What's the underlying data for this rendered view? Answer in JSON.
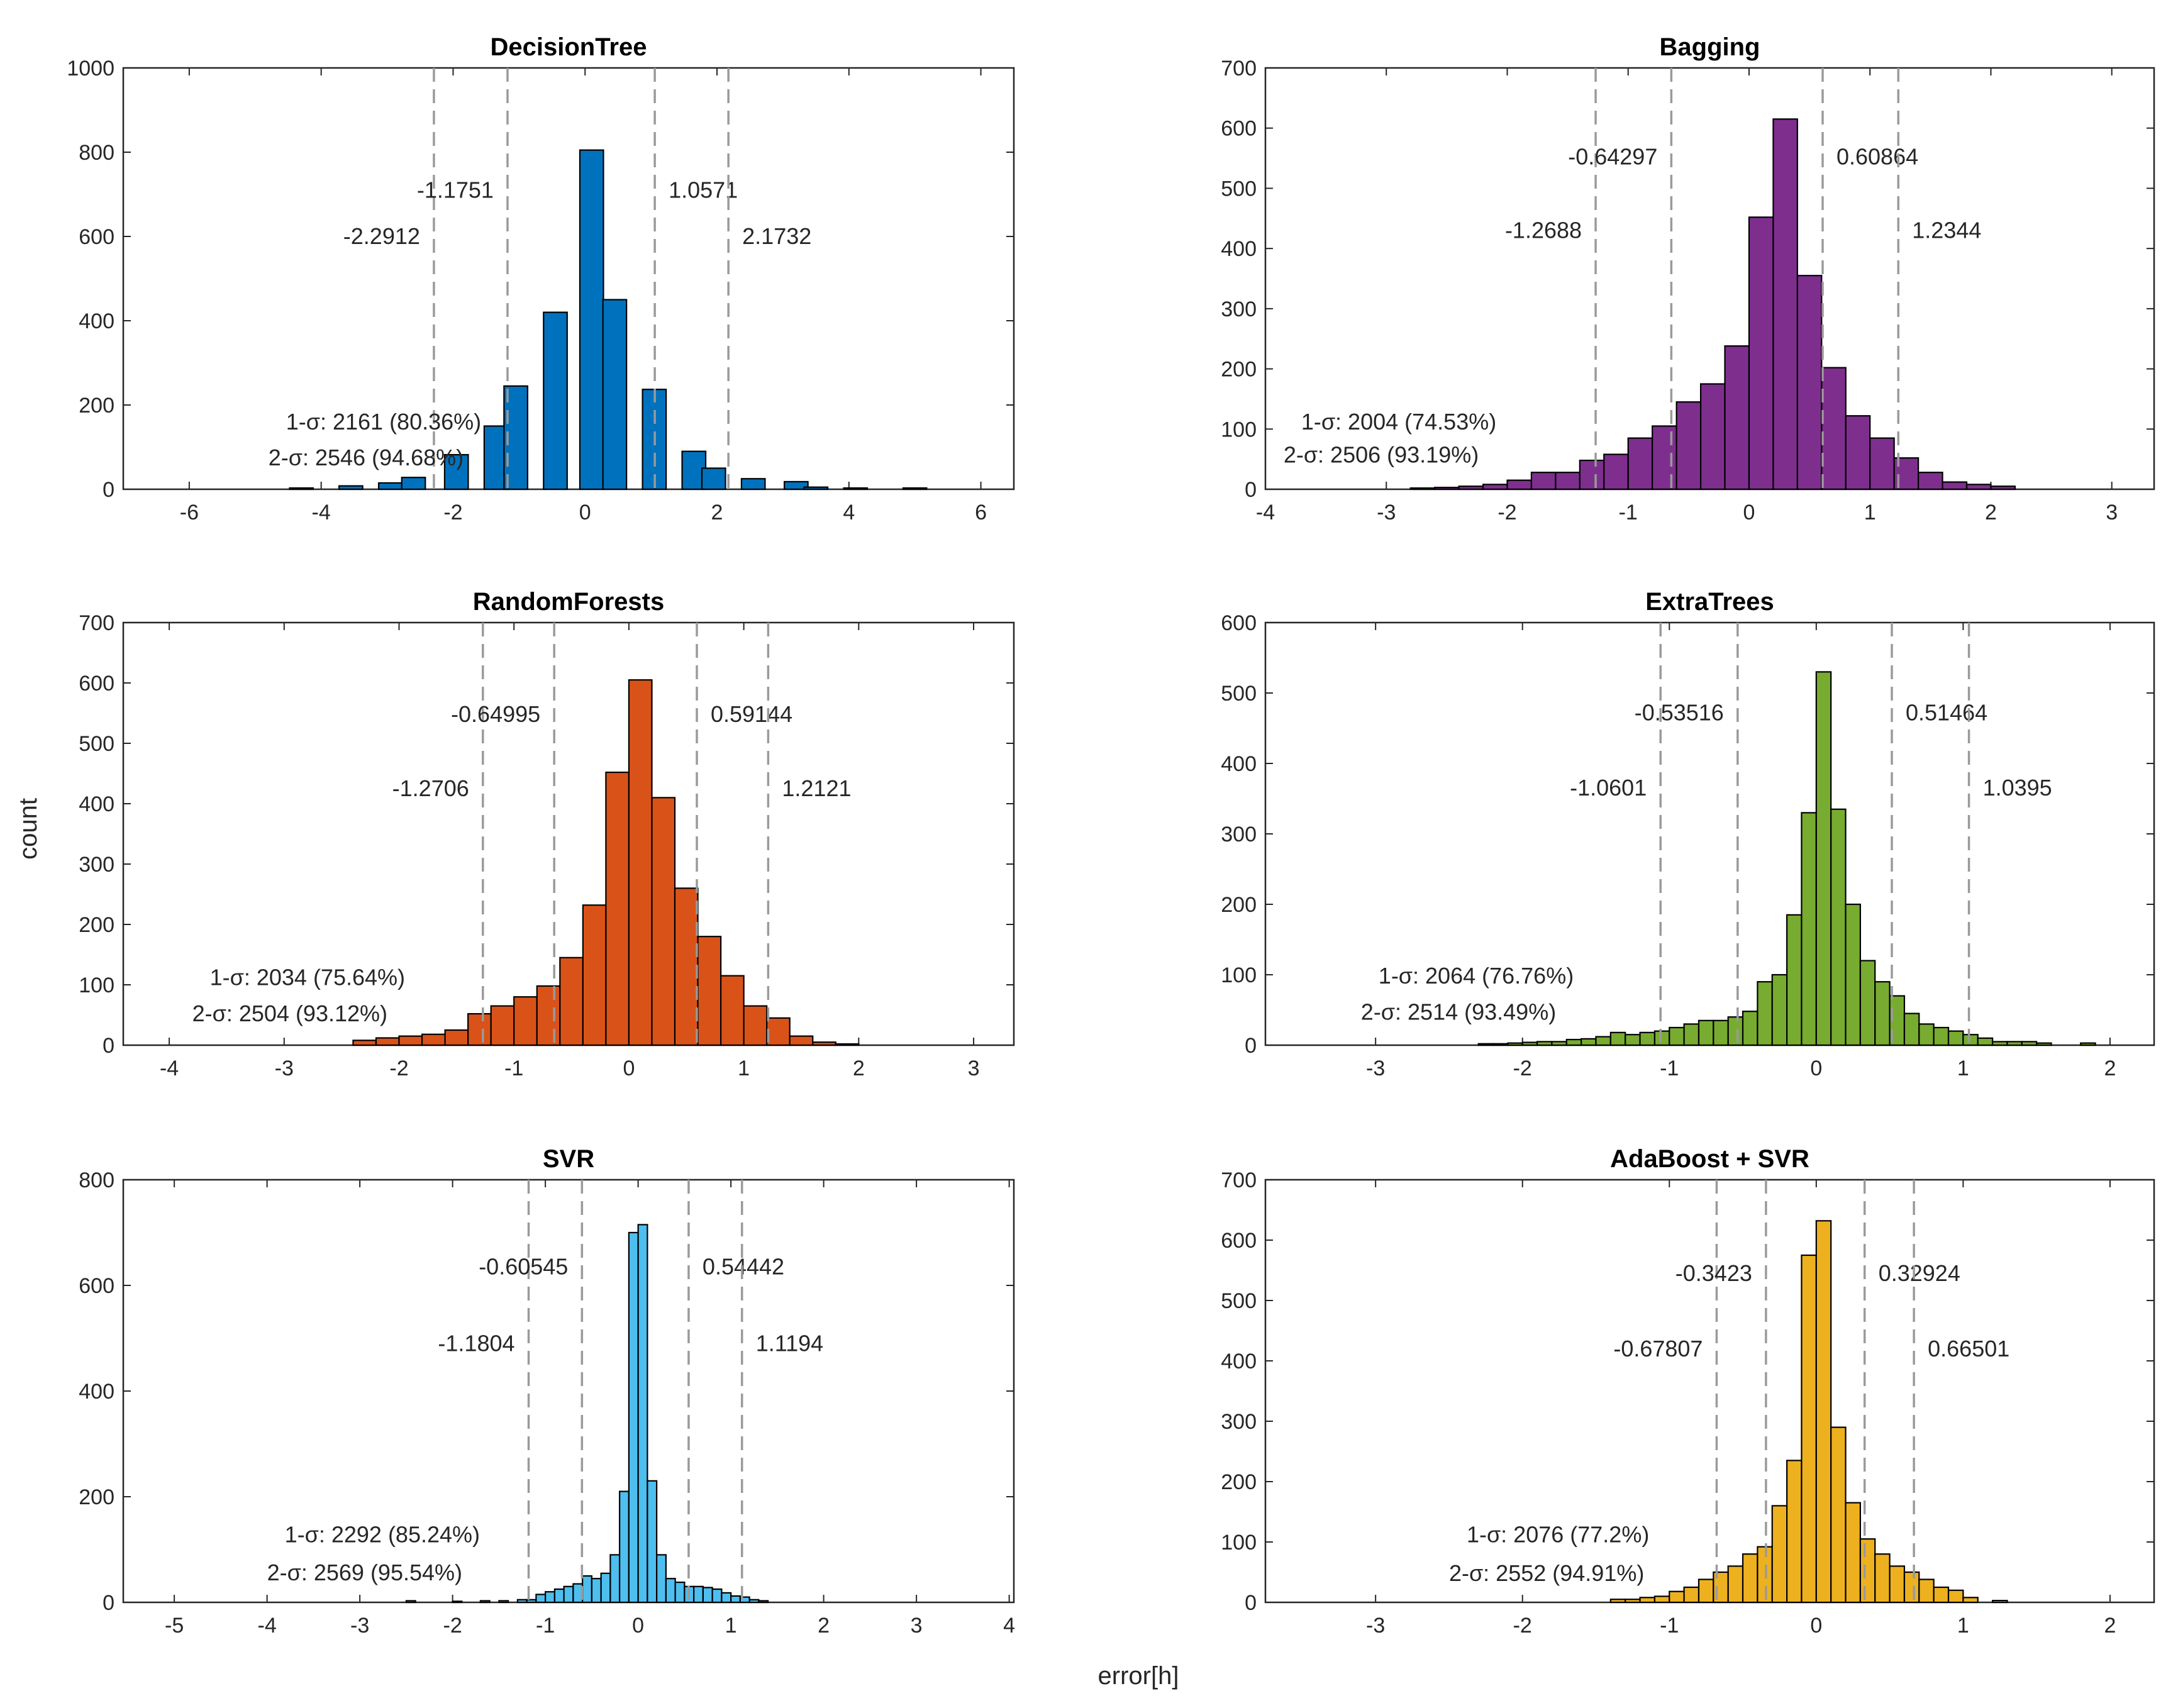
{
  "figure": {
    "ylabel": "count",
    "xlabel": "error[h]"
  },
  "chart_data": [
    {
      "type": "bar",
      "title": "DecisionTree",
      "color": "#0072BD",
      "xlim": [
        -7,
        6.5
      ],
      "ylim": [
        0,
        1000
      ],
      "xticks": [
        -6,
        -4,
        -2,
        0,
        2,
        4,
        6
      ],
      "yticks": [
        0,
        200,
        400,
        600,
        800,
        1000
      ],
      "bin_width": 0.55,
      "bar_width_fraction": 0.65,
      "bins": [
        {
          "x": -4.3,
          "y": 3
        },
        {
          "x": -3.55,
          "y": 8
        },
        {
          "x": -2.95,
          "y": 15
        },
        {
          "x": -2.6,
          "y": 28
        },
        {
          "x": -1.95,
          "y": 82
        },
        {
          "x": -1.35,
          "y": 150
        },
        {
          "x": -1.05,
          "y": 245
        },
        {
          "x": -0.45,
          "y": 420
        },
        {
          "x": 0.1,
          "y": 805
        },
        {
          "x": 0.45,
          "y": 450
        },
        {
          "x": 1.05,
          "y": 237
        },
        {
          "x": 1.65,
          "y": 90
        },
        {
          "x": 1.95,
          "y": 50
        },
        {
          "x": 2.55,
          "y": 25
        },
        {
          "x": 3.2,
          "y": 18
        },
        {
          "x": 3.5,
          "y": 5
        },
        {
          "x": 4.1,
          "y": 3
        },
        {
          "x": 5.0,
          "y": 3
        }
      ],
      "sigma_lines": [
        -2.2912,
        -1.1751,
        1.0571,
        2.1732
      ],
      "sigma_labels": [
        "-2.2912",
        "-1.1751",
        "1.0571",
        "2.1732"
      ],
      "sigma_label_y": [
        600,
        710,
        710,
        600
      ],
      "annot_1sigma": "1-σ: 2161 (80.36%)",
      "annot_2sigma": "2-σ: 2546 (94.68%)",
      "annot_x": -4.8,
      "annot_y": [
        160,
        75
      ]
    },
    {
      "type": "bar",
      "title": "Bagging",
      "color": "#7E2F8E",
      "xlim": [
        -4,
        3.35
      ],
      "ylim": [
        0,
        700
      ],
      "xticks": [
        -4,
        -3,
        -2,
        -1,
        0,
        1,
        2,
        3
      ],
      "yticks": [
        0,
        100,
        200,
        300,
        400,
        500,
        600,
        700
      ],
      "bin_width": 0.2,
      "bar_width_fraction": 1.0,
      "bins": [
        {
          "x": -2.7,
          "y": 2
        },
        {
          "x": -2.5,
          "y": 3
        },
        {
          "x": -2.3,
          "y": 5
        },
        {
          "x": -2.1,
          "y": 8
        },
        {
          "x": -1.9,
          "y": 15
        },
        {
          "x": -1.7,
          "y": 28
        },
        {
          "x": -1.5,
          "y": 28
        },
        {
          "x": -1.3,
          "y": 48
        },
        {
          "x": -1.1,
          "y": 58
        },
        {
          "x": -0.9,
          "y": 85
        },
        {
          "x": -0.7,
          "y": 105
        },
        {
          "x": -0.5,
          "y": 145
        },
        {
          "x": -0.3,
          "y": 175
        },
        {
          "x": -0.1,
          "y": 238
        },
        {
          "x": 0.1,
          "y": 452
        },
        {
          "x": 0.3,
          "y": 615
        },
        {
          "x": 0.5,
          "y": 355
        },
        {
          "x": 0.7,
          "y": 202
        },
        {
          "x": 0.9,
          "y": 122
        },
        {
          "x": 1.1,
          "y": 85
        },
        {
          "x": 1.3,
          "y": 52
        },
        {
          "x": 1.5,
          "y": 28
        },
        {
          "x": 1.7,
          "y": 12
        },
        {
          "x": 1.9,
          "y": 8
        },
        {
          "x": 2.1,
          "y": 5
        }
      ],
      "sigma_lines": [
        -1.2688,
        -0.64297,
        0.60864,
        1.2344
      ],
      "sigma_labels": [
        "-1.2688",
        "-0.64297",
        "0.60864",
        "1.2344"
      ],
      "sigma_label_y": [
        430,
        552,
        552,
        430
      ],
      "annot_1sigma": "1-σ: 2004 (74.53%)",
      "annot_2sigma": "2-σ: 2506 (93.19%)",
      "annot_x": -3.85,
      "annot_y": [
        112,
        57
      ]
    },
    {
      "type": "bar",
      "title": "RandomForests",
      "color": "#D95319",
      "xlim": [
        -4.4,
        3.35
      ],
      "ylim": [
        0,
        700
      ],
      "xticks": [
        -4,
        -3,
        -2,
        -1,
        0,
        1,
        2,
        3
      ],
      "yticks": [
        0,
        100,
        200,
        300,
        400,
        500,
        600,
        700
      ],
      "bin_width": 0.2,
      "bar_width_fraction": 1.0,
      "bins": [
        {
          "x": -2.3,
          "y": 8
        },
        {
          "x": -2.1,
          "y": 12
        },
        {
          "x": -1.9,
          "y": 15
        },
        {
          "x": -1.7,
          "y": 18
        },
        {
          "x": -1.5,
          "y": 25
        },
        {
          "x": -1.3,
          "y": 52
        },
        {
          "x": -1.1,
          "y": 65
        },
        {
          "x": -0.9,
          "y": 80
        },
        {
          "x": -0.7,
          "y": 98
        },
        {
          "x": -0.5,
          "y": 145
        },
        {
          "x": -0.3,
          "y": 232
        },
        {
          "x": -0.1,
          "y": 452
        },
        {
          "x": 0.1,
          "y": 605
        },
        {
          "x": 0.3,
          "y": 410
        },
        {
          "x": 0.5,
          "y": 260
        },
        {
          "x": 0.7,
          "y": 180
        },
        {
          "x": 0.9,
          "y": 115
        },
        {
          "x": 1.1,
          "y": 65
        },
        {
          "x": 1.3,
          "y": 45
        },
        {
          "x": 1.5,
          "y": 15
        },
        {
          "x": 1.7,
          "y": 5
        },
        {
          "x": 1.9,
          "y": 2
        }
      ],
      "sigma_lines": [
        -1.2706,
        -0.64995,
        0.59144,
        1.2121
      ],
      "sigma_labels": [
        "-1.2706",
        "-0.64995",
        "0.59144",
        "1.2121"
      ],
      "sigma_label_y": [
        425,
        548,
        548,
        425
      ],
      "annot_1sigma": "1-σ: 2034 (75.64%)",
      "annot_2sigma": "2-σ: 2504 (93.12%)",
      "annot_x": -3.8,
      "annot_y": [
        112,
        52
      ]
    },
    {
      "type": "bar",
      "title": "ExtraTrees",
      "color": "#77AC30",
      "xlim": [
        -3.75,
        2.3
      ],
      "ylim": [
        0,
        600
      ],
      "xticks": [
        -3,
        -2,
        -1,
        0,
        1,
        2
      ],
      "yticks": [
        0,
        100,
        200,
        300,
        400,
        500,
        600
      ],
      "bin_width": 0.1,
      "bar_width_fraction": 1.0,
      "bins": [
        {
          "x": -2.25,
          "y": 2
        },
        {
          "x": -2.15,
          "y": 2
        },
        {
          "x": -2.05,
          "y": 3
        },
        {
          "x": -1.95,
          "y": 4
        },
        {
          "x": -1.85,
          "y": 5
        },
        {
          "x": -1.75,
          "y": 5
        },
        {
          "x": -1.65,
          "y": 8
        },
        {
          "x": -1.55,
          "y": 9
        },
        {
          "x": -1.45,
          "y": 12
        },
        {
          "x": -1.35,
          "y": 18
        },
        {
          "x": -1.25,
          "y": 15
        },
        {
          "x": -1.15,
          "y": 18
        },
        {
          "x": -1.05,
          "y": 20
        },
        {
          "x": -0.95,
          "y": 25
        },
        {
          "x": -0.85,
          "y": 30
        },
        {
          "x": -0.75,
          "y": 35
        },
        {
          "x": -0.65,
          "y": 35
        },
        {
          "x": -0.55,
          "y": 40
        },
        {
          "x": -0.45,
          "y": 48
        },
        {
          "x": -0.35,
          "y": 90
        },
        {
          "x": -0.25,
          "y": 100
        },
        {
          "x": -0.15,
          "y": 185
        },
        {
          "x": -0.05,
          "y": 330
        },
        {
          "x": 0.05,
          "y": 530
        },
        {
          "x": 0.15,
          "y": 335
        },
        {
          "x": 0.25,
          "y": 200
        },
        {
          "x": 0.35,
          "y": 120
        },
        {
          "x": 0.45,
          "y": 90
        },
        {
          "x": 0.55,
          "y": 70
        },
        {
          "x": 0.65,
          "y": 45
        },
        {
          "x": 0.75,
          "y": 30
        },
        {
          "x": 0.85,
          "y": 25
        },
        {
          "x": 0.95,
          "y": 20
        },
        {
          "x": 1.05,
          "y": 15
        },
        {
          "x": 1.15,
          "y": 10
        },
        {
          "x": 1.25,
          "y": 5
        },
        {
          "x": 1.35,
          "y": 5
        },
        {
          "x": 1.45,
          "y": 5
        },
        {
          "x": 1.55,
          "y": 3
        },
        {
          "x": 1.85,
          "y": 3
        }
      ],
      "sigma_lines": [
        -1.0601,
        -0.53516,
        0.51464,
        1.0395
      ],
      "sigma_labels": [
        "-1.0601",
        "-0.53516",
        "0.51464",
        "1.0395"
      ],
      "sigma_label_y": [
        365,
        472,
        472,
        365
      ],
      "annot_1sigma": "1-σ: 2064 (76.76%)",
      "annot_2sigma": "2-σ: 2514 (93.49%)",
      "annot_x": -3.1,
      "annot_y": [
        98,
        47
      ]
    },
    {
      "type": "bar",
      "title": "SVR",
      "color": "#4DBEEE",
      "xlim": [
        -5.55,
        4.05
      ],
      "ylim": [
        0,
        800
      ],
      "xticks": [
        -5,
        -4,
        -3,
        -2,
        -1,
        0,
        1,
        2,
        3,
        4
      ],
      "yticks": [
        0,
        200,
        400,
        600,
        800
      ],
      "bin_width": 0.1,
      "bar_width_fraction": 1.0,
      "bins": [
        {
          "x": -2.45,
          "y": 3
        },
        {
          "x": -1.95,
          "y": 2
        },
        {
          "x": -1.65,
          "y": 3
        },
        {
          "x": -1.45,
          "y": 3
        },
        {
          "x": -1.25,
          "y": 5
        },
        {
          "x": -1.15,
          "y": 5
        },
        {
          "x": -1.05,
          "y": 15
        },
        {
          "x": -0.95,
          "y": 20
        },
        {
          "x": -0.85,
          "y": 25
        },
        {
          "x": -0.75,
          "y": 30
        },
        {
          "x": -0.65,
          "y": 35
        },
        {
          "x": -0.55,
          "y": 50
        },
        {
          "x": -0.45,
          "y": 45
        },
        {
          "x": -0.35,
          "y": 55
        },
        {
          "x": -0.25,
          "y": 90
        },
        {
          "x": -0.15,
          "y": 210
        },
        {
          "x": -0.05,
          "y": 700
        },
        {
          "x": 0.05,
          "y": 715
        },
        {
          "x": 0.15,
          "y": 230
        },
        {
          "x": 0.25,
          "y": 90
        },
        {
          "x": 0.35,
          "y": 45
        },
        {
          "x": 0.45,
          "y": 38
        },
        {
          "x": 0.55,
          "y": 30
        },
        {
          "x": 0.65,
          "y": 30
        },
        {
          "x": 0.75,
          "y": 28
        },
        {
          "x": 0.85,
          "y": 25
        },
        {
          "x": 0.95,
          "y": 18
        },
        {
          "x": 1.05,
          "y": 12
        },
        {
          "x": 1.15,
          "y": 10
        },
        {
          "x": 1.25,
          "y": 5
        },
        {
          "x": 1.35,
          "y": 3
        }
      ],
      "sigma_lines": [
        -1.1804,
        -0.60545,
        0.54442,
        1.1194
      ],
      "sigma_labels": [
        "-1.1804",
        "-0.60545",
        "0.54442",
        "1.1194"
      ],
      "sigma_label_y": [
        490,
        635,
        635,
        490
      ],
      "annot_1sigma": "1-σ: 2292 (85.24%)",
      "annot_2sigma": "2-σ: 2569 (95.54%)",
      "annot_x": -4.0,
      "annot_y": [
        128,
        56
      ]
    },
    {
      "type": "bar",
      "title": "AdaBoost + SVR",
      "color": "#EDB120",
      "xlim": [
        -3.75,
        2.3
      ],
      "ylim": [
        0,
        700
      ],
      "xticks": [
        -3,
        -2,
        -1,
        0,
        1,
        2
      ],
      "yticks": [
        0,
        100,
        200,
        300,
        400,
        500,
        600,
        700
      ],
      "bin_width": 0.1,
      "bar_width_fraction": 1.0,
      "bins": [
        {
          "x": -1.35,
          "y": 5
        },
        {
          "x": -1.25,
          "y": 5
        },
        {
          "x": -1.15,
          "y": 8
        },
        {
          "x": -1.05,
          "y": 10
        },
        {
          "x": -0.95,
          "y": 18
        },
        {
          "x": -0.85,
          "y": 25
        },
        {
          "x": -0.75,
          "y": 38
        },
        {
          "x": -0.65,
          "y": 50
        },
        {
          "x": -0.55,
          "y": 60
        },
        {
          "x": -0.45,
          "y": 80
        },
        {
          "x": -0.35,
          "y": 92
        },
        {
          "x": -0.25,
          "y": 160
        },
        {
          "x": -0.15,
          "y": 235
        },
        {
          "x": -0.05,
          "y": 575
        },
        {
          "x": 0.05,
          "y": 632
        },
        {
          "x": 0.15,
          "y": 290
        },
        {
          "x": 0.25,
          "y": 165
        },
        {
          "x": 0.35,
          "y": 105
        },
        {
          "x": 0.45,
          "y": 80
        },
        {
          "x": 0.55,
          "y": 60
        },
        {
          "x": 0.65,
          "y": 50
        },
        {
          "x": 0.75,
          "y": 38
        },
        {
          "x": 0.85,
          "y": 25
        },
        {
          "x": 0.95,
          "y": 20
        },
        {
          "x": 1.05,
          "y": 8
        },
        {
          "x": 1.25,
          "y": 3
        }
      ],
      "sigma_lines": [
        -0.67807,
        -0.3423,
        0.32924,
        0.66501
      ],
      "sigma_labels": [
        "-0.67807",
        "-0.3423",
        "0.32924",
        "0.66501"
      ],
      "sigma_label_y": [
        420,
        545,
        545,
        420
      ],
      "annot_1sigma": "1-σ: 2076 (77.2%)",
      "annot_2sigma": "2-σ: 2552 (94.91%)",
      "annot_x": -2.5,
      "annot_y": [
        112,
        48
      ]
    }
  ]
}
